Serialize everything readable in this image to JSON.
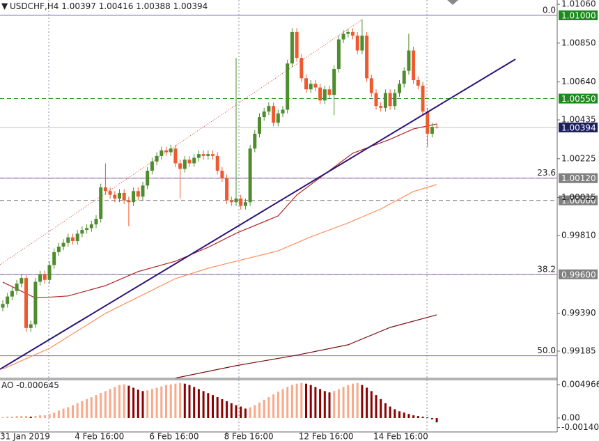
{
  "chart_data": [
    {
      "type": "candlestick",
      "symbol": "USDCHF,H4",
      "open": [
        0.9942,
        0.9944,
        0.9948,
        0.9951,
        0.9955,
        0.9958,
        0.9931,
        0.9933,
        0.9956,
        0.996,
        0.9957,
        0.9965,
        0.9972,
        0.9975,
        0.9977,
        0.998,
        0.9978,
        0.9982,
        0.9984,
        0.9985,
        0.9987,
        0.999,
        1.0007,
        1.0005,
        1.0003,
        1.0001,
        1.0004,
        1.0,
        0.9999,
        1.0005,
        1.0002,
        1.0008,
        1.0016,
        1.0021,
        1.0024,
        1.0027,
        1.0026,
        1.0028,
        1.002,
        1.0017,
        1.0022,
        1.002,
        1.0023,
        1.0025,
        1.0024,
        1.0025,
        1.0024,
        1.0016,
        1.0012,
        1.0,
        0.9999,
        1.0001,
        0.9997,
        0.9999,
        1.0028,
        1.0036,
        1.0045,
        1.0048,
        1.0051,
        1.0042,
        1.0047,
        1.0049,
        1.0074,
        1.0091,
        1.0077,
        1.0066,
        1.006,
        1.0063,
        1.0061,
        1.0054,
        1.006,
        1.0057,
        1.0071,
        1.0087,
        1.009,
        1.0091,
        1.0089,
        1.0081,
        1.0089,
        1.0066,
        1.0058,
        1.0051,
        1.005,
        1.0058,
        1.0051,
        1.0058,
        1.0063,
        1.007,
        1.0081,
        1.0065,
        1.0062,
        1.0048,
        1.0036,
        1.00397
      ],
      "high": [
        0.9946,
        0.995,
        0.9953,
        0.9957,
        0.996,
        0.996,
        0.9935,
        0.9958,
        0.9962,
        0.9962,
        0.9967,
        0.9974,
        0.9977,
        0.9979,
        0.9982,
        0.9982,
        0.9984,
        0.9986,
        0.9987,
        0.9989,
        0.9992,
        1.0009,
        1.002,
        1.0007,
        1.0005,
        1.0006,
        1.0006,
        1.0002,
        1.0007,
        1.0007,
        1.001,
        1.0018,
        1.0023,
        1.0026,
        1.0029,
        1.0029,
        1.003,
        1.003,
        1.0022,
        1.0024,
        1.0024,
        1.0025,
        1.0027,
        1.0027,
        1.0027,
        1.0027,
        1.0026,
        1.0018,
        1.0014,
        1.0002,
        1.0077,
        1.0003,
        1.0001,
        1.003,
        1.0038,
        1.0047,
        1.005,
        1.0053,
        1.0053,
        1.0049,
        1.0051,
        1.0076,
        1.0093,
        1.0093,
        1.0079,
        1.0068,
        1.0065,
        1.0065,
        1.0063,
        1.0062,
        1.0062,
        1.0073,
        1.0089,
        1.0092,
        1.0093,
        1.0093,
        1.0091,
        1.0098,
        1.0091,
        1.0068,
        1.006,
        1.0053,
        1.006,
        1.006,
        1.006,
        1.0065,
        1.0072,
        1.009,
        1.0083,
        1.0067,
        1.0064,
        1.005,
        1.0042,
        1.00416
      ],
      "low": [
        0.994,
        0.9942,
        0.9946,
        0.9949,
        0.9953,
        0.9929,
        0.9929,
        0.9931,
        0.9954,
        0.9955,
        0.9955,
        0.9963,
        0.997,
        0.9973,
        0.9975,
        0.9976,
        0.9976,
        0.998,
        0.9982,
        0.9983,
        0.9985,
        0.9988,
        1.0003,
        1.0001,
        0.9999,
        0.9999,
        0.9998,
        0.9986,
        0.9997,
        1.0,
        1.0,
        1.0006,
        1.0014,
        1.0019,
        1.0022,
        1.0024,
        1.0024,
        1.0018,
        1.0001,
        1.0015,
        1.0018,
        1.0018,
        1.0021,
        1.0022,
        1.0022,
        1.0022,
        1.0014,
        1.001,
        0.9998,
        0.9997,
        0.9997,
        0.9995,
        0.9995,
        0.9997,
        1.0026,
        1.0034,
        1.0043,
        1.0046,
        1.004,
        1.004,
        1.0045,
        1.0047,
        1.0072,
        1.0075,
        1.0064,
        1.0058,
        1.0058,
        1.0059,
        1.0052,
        1.0052,
        1.0055,
        1.0046,
        1.0069,
        1.0085,
        1.0088,
        1.0087,
        1.0079,
        1.0079,
        1.0064,
        1.0056,
        1.0049,
        1.0048,
        1.0048,
        1.0049,
        1.0049,
        1.0056,
        1.0061,
        1.0068,
        1.0063,
        1.006,
        1.0046,
        1.0029,
        1.0034,
        1.00388
      ],
      "close": [
        0.9944,
        0.9948,
        0.9951,
        0.9955,
        0.9958,
        0.9931,
        0.9933,
        0.9956,
        0.996,
        0.9957,
        0.9965,
        0.9972,
        0.9975,
        0.9977,
        0.998,
        0.9978,
        0.9982,
        0.9984,
        0.9985,
        0.9987,
        0.999,
        1.0007,
        1.0005,
        1.0003,
        1.0001,
        1.0004,
        1.0,
        0.9999,
        1.0005,
        1.0002,
        1.0008,
        1.0016,
        1.0021,
        1.0024,
        1.0027,
        1.0026,
        1.0028,
        1.002,
        1.0017,
        1.0022,
        1.002,
        1.0023,
        1.0025,
        1.0024,
        1.0025,
        1.0024,
        1.0016,
        1.0012,
        1.0,
        0.9999,
        1.0001,
        0.9997,
        0.9999,
        1.0028,
        1.0036,
        1.0045,
        1.0048,
        1.0051,
        1.0042,
        1.0047,
        1.0049,
        1.0074,
        1.0091,
        1.0077,
        1.0066,
        1.006,
        1.0063,
        1.0061,
        1.0054,
        1.006,
        1.0057,
        1.0071,
        1.0087,
        1.009,
        1.0091,
        1.0089,
        1.0081,
        1.0089,
        1.0066,
        1.0058,
        1.0051,
        1.005,
        1.0058,
        1.0051,
        1.0058,
        1.0063,
        1.007,
        1.0081,
        1.0065,
        1.0062,
        1.0048,
        1.0036,
        1.00397,
        1.00394
      ],
      "up_color": "#4e8c2e",
      "down_color": "#ee5a30",
      "lines": [
        {
          "color": "#b22222",
          "x": [
            0,
            7,
            14,
            22,
            29,
            37,
            44,
            50,
            59,
            63,
            69,
            75,
            83,
            88,
            93
          ],
          "values": [
            0.99558,
            0.99472,
            0.99483,
            0.99539,
            0.99615,
            0.99671,
            0.99746,
            0.99822,
            0.99916,
            1.00029,
            1.00142,
            1.00255,
            1.0033,
            1.00386,
            1.00413
          ]
        },
        {
          "color": "#ff8c5a",
          "x": [
            0,
            10,
            22,
            37,
            44,
            50,
            59,
            66,
            74,
            81,
            88,
            93
          ],
          "values": [
            0.99088,
            0.992,
            0.99389,
            0.99577,
            0.99633,
            0.99671,
            0.99727,
            0.99803,
            0.99878,
            0.99953,
            1.00048,
            1.00085
          ]
        },
        {
          "color": "#7a0f0f",
          "x": [
            37,
            50,
            63,
            74,
            83,
            93
          ],
          "values": [
            0.99039,
            0.99106,
            0.99163,
            0.99219,
            0.99313,
            0.99381
          ]
        }
      ],
      "price_levels": [
        {
          "value": 1.01,
          "label": "1.01000",
          "color": "#1d8a1d",
          "style": "dashed"
        },
        {
          "value": 1.0055,
          "label": "1.00550",
          "color": "#1d8a1d",
          "style": "dashed"
        },
        {
          "value": 1.0012,
          "label": "1.00120",
          "color": "#808080",
          "style": "dashed"
        },
        {
          "value": 1.0,
          "label": "1.00000",
          "color": "#808080",
          "style": "dashed"
        },
        {
          "value": 0.996,
          "label": "0.99600",
          "color": "#808080",
          "style": "dashed"
        }
      ],
      "current_color": "#1b1f5e",
      "fib_levels": [
        {
          "value": 1.01,
          "label": "0.0"
        },
        {
          "value": 1.0012,
          "label": "23.6"
        },
        {
          "value": 0.996,
          "label": "38.2"
        },
        {
          "value": 0.9916,
          "label": "50.0"
        }
      ],
      "fib_color": "#8a6fb0",
      "ylim": [
        0.99038,
        1.01083
      ],
      "yticks": [
        {
          "value": 1.0106,
          "label": "1.01060"
        },
        {
          "value": 1.0085,
          "label": "1.00850"
        },
        {
          "value": 1.0064,
          "label": "1.00640"
        },
        1.00435,
        1.00225,
        {
          "value": 1.00015,
          "label": "1.00015"
        },
        {
          "value": 0.9981,
          "label": "0.99810"
        },
        {
          "value": 0.9939,
          "label": "0.99390"
        },
        0.99185
      ],
      "xticks": [
        {
          "value": 0,
          "label": "31 Jan 2019"
        },
        {
          "value": 16,
          "label": "4 Feb 16:00"
        },
        {
          "value": 32,
          "label": "6 Feb 16:00"
        },
        {
          "value": 48,
          "label": "8 Feb 16:00"
        },
        {
          "value": 64,
          "label": "12 Feb 16:00"
        },
        {
          "value": 80,
          "label": "14 Feb 16:00"
        }
      ]
    },
    {
      "type": "bar",
      "name": "AO",
      "values": [
        0.0001,
        0.0002,
        0.0002,
        0.0003,
        0.0003,
        0.0003,
        0.0002,
        0.0003,
        0.0004,
        0.0004,
        0.0006,
        0.0008,
        0.0011,
        0.0014,
        0.0016,
        0.0019,
        0.0022,
        0.0025,
        0.0028,
        0.0031,
        0.0034,
        0.0037,
        0.004,
        0.0043,
        0.0046,
        0.0049,
        0.005,
        0.0048,
        0.0045,
        0.0042,
        0.004,
        0.0041,
        0.0043,
        0.0045,
        0.0047,
        0.0049,
        0.005,
        0.0051,
        0.0052,
        0.0051,
        0.0049,
        0.0046,
        0.0043,
        0.004,
        0.0037,
        0.0034,
        0.0031,
        0.0028,
        0.0025,
        0.0022,
        0.0019,
        0.0017,
        0.0014,
        0.0016,
        0.0019,
        0.0023,
        0.0027,
        0.0031,
        0.0035,
        0.0039,
        0.0043,
        0.0046,
        0.0049,
        0.0051,
        0.0052,
        0.0051,
        0.0049,
        0.0046,
        0.0043,
        0.004,
        0.0038,
        0.004,
        0.0043,
        0.0046,
        0.0049,
        0.0051,
        0.0052,
        0.0049,
        0.0045,
        0.004,
        0.0034,
        0.0028,
        0.0022,
        0.0017,
        0.0013,
        0.001,
        0.0008,
        0.0006,
        0.0004,
        0.0003,
        0.0002,
        0.0001,
        -0.0002,
        -0.000645
      ],
      "up_color": "#f7a98a",
      "down_color": "#8b0000",
      "ylim": [
        -0.002069,
        0.00569
      ],
      "yticks": [
        0.004966,
        {
          "value": 0,
          "label": "0.00"
        },
        -0.001401
      ]
    }
  ]
}
